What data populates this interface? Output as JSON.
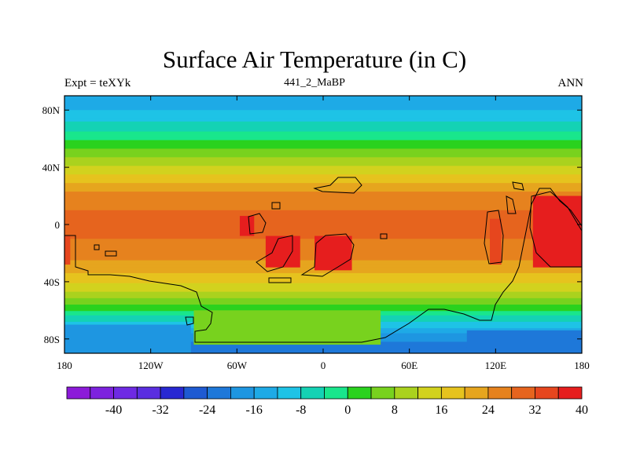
{
  "title": "Surface Air Temperature (in C)",
  "subtitle_left": "Expt = teXYk",
  "subtitle_center": "441_2_MaBP",
  "subtitle_right": "ANN",
  "chart_data": {
    "type": "heatmap",
    "title": "Surface Air Temperature (in C)",
    "x_range": [
      -180,
      180
    ],
    "y_range": [
      -90,
      90
    ],
    "x_ticks": [
      {
        "value": -180,
        "label": "180"
      },
      {
        "value": -120,
        "label": "120W"
      },
      {
        "value": -60,
        "label": "60W"
      },
      {
        "value": 0,
        "label": "0"
      },
      {
        "value": 60,
        "label": "60E"
      },
      {
        "value": 120,
        "label": "120E"
      },
      {
        "value": 180,
        "label": "180"
      }
    ],
    "y_ticks": [
      {
        "value": 80,
        "label": "80N"
      },
      {
        "value": 40,
        "label": "40N"
      },
      {
        "value": 0,
        "label": "0"
      },
      {
        "value": -40,
        "label": "40S"
      },
      {
        "value": -80,
        "label": "80S"
      }
    ],
    "zonal_profile": [
      {
        "lat": 90,
        "value": -14
      },
      {
        "lat": 84,
        "value": -14
      },
      {
        "lat": 76,
        "value": -10
      },
      {
        "lat": 68,
        "value": -6
      },
      {
        "lat": 62,
        "value": -2
      },
      {
        "lat": 56,
        "value": 2
      },
      {
        "lat": 50,
        "value": 6
      },
      {
        "lat": 44,
        "value": 10
      },
      {
        "lat": 38,
        "value": 14
      },
      {
        "lat": 32,
        "value": 18
      },
      {
        "lat": 26,
        "value": 22
      },
      {
        "lat": 20,
        "value": 26
      },
      {
        "lat": 10,
        "value": 28
      },
      {
        "lat": 0,
        "value": 29
      },
      {
        "lat": -10,
        "value": 28
      },
      {
        "lat": -20,
        "value": 26
      },
      {
        "lat": -30,
        "value": 22
      },
      {
        "lat": -38,
        "value": 18
      },
      {
        "lat": -44,
        "value": 14
      },
      {
        "lat": -50,
        "value": 10
      },
      {
        "lat": -56,
        "value": 4
      },
      {
        "lat": -62,
        "value": -2
      },
      {
        "lat": -68,
        "value": -8
      },
      {
        "lat": -74,
        "value": -14
      },
      {
        "lat": -82,
        "value": -20
      },
      {
        "lat": -90,
        "value": -22
      }
    ],
    "hot_regions": [
      {
        "lon_min": -40,
        "lon_max": -16,
        "lat_min": -30,
        "lat_max": -8,
        "value": 36
      },
      {
        "lon_min": -58,
        "lon_max": -48,
        "lat_min": -8,
        "lat_max": 6,
        "value": 36
      },
      {
        "lon_min": -6,
        "lon_max": 20,
        "lat_min": -32,
        "lat_max": -8,
        "value": 36
      },
      {
        "lon_min": 116,
        "lon_max": 124,
        "lat_min": -28,
        "lat_max": 4,
        "value": 34
      },
      {
        "lon_min": 146,
        "lon_max": 180,
        "lat_min": -30,
        "lat_max": 20,
        "value": 36
      },
      {
        "lon_min": -180,
        "lon_max": -176,
        "lat_min": -28,
        "lat_max": -8,
        "value": 34
      }
    ],
    "cool_regions": [
      {
        "lon_min": -90,
        "lon_max": 40,
        "lat_min": -84,
        "lat_max": -60,
        "value": 6
      },
      {
        "lon_min": -180,
        "lon_max": -92,
        "lat_min": -90,
        "lat_max": -70,
        "value": -20
      },
      {
        "lon_min": 100,
        "lon_max": 180,
        "lat_min": -90,
        "lat_max": -74,
        "value": -22
      }
    ],
    "colorbar": {
      "colors": [
        "#8c1ad9",
        "#7d22de",
        "#6e2ae3",
        "#5a2ee0",
        "#2828d2",
        "#1e5ad2",
        "#1e78d9",
        "#1e96e1",
        "#1eaae6",
        "#1ec3e6",
        "#14d2b4",
        "#19e68c",
        "#2ad21e",
        "#78d21e",
        "#aad21e",
        "#d2d21e",
        "#e6c31e",
        "#e6a51e",
        "#e6821e",
        "#e6641e",
        "#e6461e",
        "#e61e1e"
      ],
      "labels": [
        {
          "index": 2,
          "text": "-40"
        },
        {
          "index": 4,
          "text": "-32"
        },
        {
          "index": 6,
          "text": "-24"
        },
        {
          "index": 8,
          "text": "-16"
        },
        {
          "index": 10,
          "text": "-8"
        },
        {
          "index": 12,
          "text": "0"
        },
        {
          "index": 14,
          "text": "8"
        },
        {
          "index": 16,
          "text": "16"
        },
        {
          "index": 18,
          "text": "24"
        },
        {
          "index": 20,
          "text": "32"
        },
        {
          "index": 22,
          "text": "40"
        }
      ],
      "min": -48,
      "step": 4
    }
  }
}
